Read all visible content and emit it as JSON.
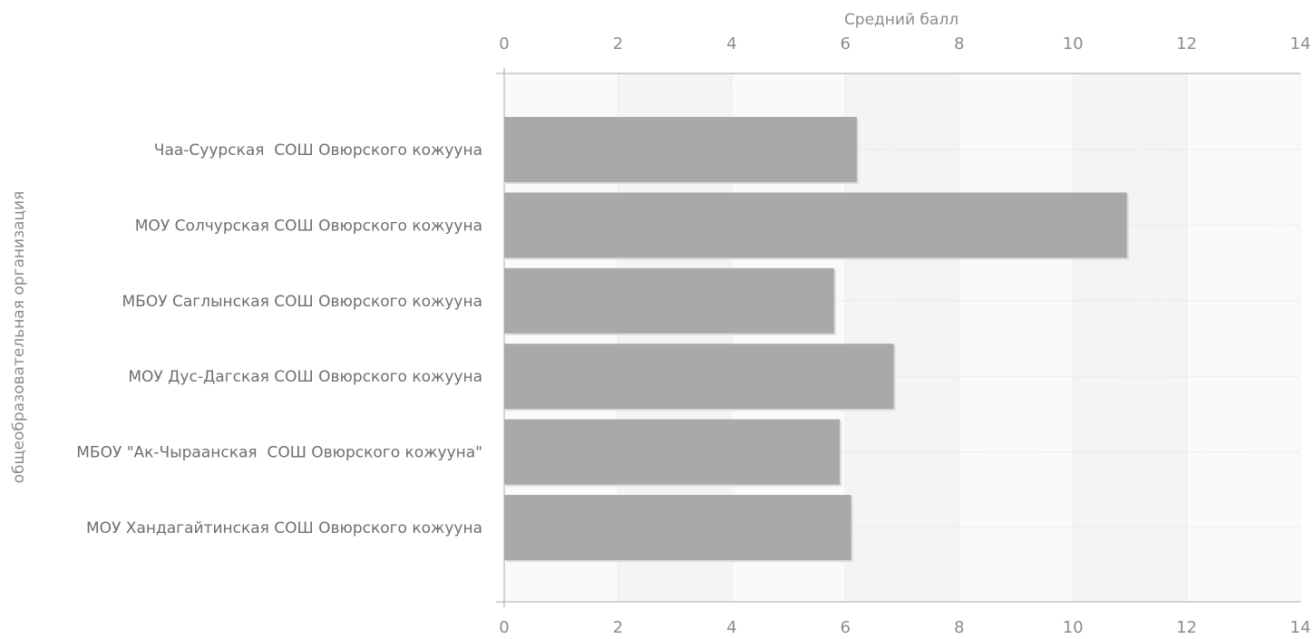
{
  "chart_data": {
    "type": "bar",
    "orientation": "horizontal",
    "xlabel": "Средний балл",
    "ylabel": "общеобразовательная организация",
    "xlim": [
      0,
      14
    ],
    "xticks": [
      0,
      2,
      4,
      6,
      8,
      10,
      12,
      14
    ],
    "x_axis_position": "top and bottom",
    "grid": true,
    "bar_color": "#a9a9a9",
    "categories": [
      "Чаа-Суурская  СОШ Овюрского кожууна",
      "МОУ Солчурская СОШ Овюрского кожууна",
      "МБОУ Саглынская СОШ Овюрского кожууна",
      "МОУ Дус-Дагская СОШ Овюрского кожууна",
      "МБОУ \"Ак-Чыраанская  СОШ Овюрского кожууна\"",
      "МОУ Хандагайтинская СОШ Овюрского кожууна"
    ],
    "values": [
      6.2,
      10.95,
      5.8,
      6.85,
      5.9,
      6.1
    ]
  }
}
